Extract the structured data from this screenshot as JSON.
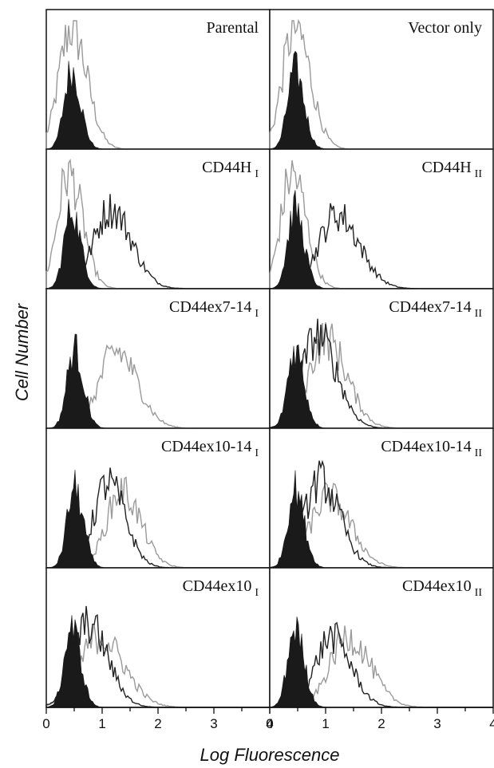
{
  "chart_data": {
    "type": "histogram-grid",
    "ylabel": "Cell Number",
    "xlabel": "Log Fluorescence",
    "xlim": [
      0,
      4
    ],
    "xticks": [
      0,
      1,
      2,
      3,
      4
    ],
    "series_style": {
      "control": {
        "fill": "#1a1a1a"
      },
      "antibody_dark": {
        "stroke": "#222222"
      },
      "antibody_gray": {
        "stroke": "#9a9a9a"
      }
    },
    "panels": [
      {
        "label": "Parental",
        "subscript": "",
        "control_peak": 0.45,
        "antibody": [
          {
            "tone": "gray",
            "peak": 0.45,
            "height": 0.95,
            "width": 0.22
          }
        ]
      },
      {
        "label": "Vector only",
        "subscript": "",
        "control_peak": 0.45,
        "antibody": [
          {
            "tone": "gray",
            "peak": 0.45,
            "height": 0.95,
            "width": 0.22
          }
        ]
      },
      {
        "label": "CD44H",
        "subscript": "I",
        "control_peak": 0.45,
        "antibody": [
          {
            "tone": "gray",
            "peak": 0.4,
            "height": 0.9,
            "width": 0.2
          },
          {
            "tone": "dark",
            "peak": 1.15,
            "height": 0.62,
            "width": 0.3
          }
        ]
      },
      {
        "label": "CD44H",
        "subscript": "II",
        "control_peak": 0.45,
        "antibody": [
          {
            "tone": "gray",
            "peak": 0.4,
            "height": 0.9,
            "width": 0.2
          },
          {
            "tone": "dark",
            "peak": 1.2,
            "height": 0.58,
            "width": 0.32
          }
        ]
      },
      {
        "label": "CD44ex7-14",
        "subscript": "I",
        "control_peak": 0.5,
        "antibody": [
          {
            "tone": "gray",
            "peak": 1.25,
            "height": 0.6,
            "width": 0.3
          }
        ]
      },
      {
        "label": "CD44ex7-14",
        "subscript": "II",
        "control_peak": 0.45,
        "antibody": [
          {
            "tone": "dark",
            "peak": 0.85,
            "height": 0.72,
            "width": 0.28
          },
          {
            "tone": "gray",
            "peak": 1.0,
            "height": 0.7,
            "width": 0.3
          }
        ]
      },
      {
        "label": "CD44ex10-14",
        "subscript": "I",
        "control_peak": 0.5,
        "antibody": [
          {
            "tone": "dark",
            "peak": 1.1,
            "height": 0.66,
            "width": 0.25
          },
          {
            "tone": "gray",
            "peak": 1.35,
            "height": 0.6,
            "width": 0.27
          }
        ]
      },
      {
        "label": "CD44ex10-14",
        "subscript": "II",
        "control_peak": 0.45,
        "antibody": [
          {
            "tone": "dark",
            "peak": 0.9,
            "height": 0.68,
            "width": 0.28
          },
          {
            "tone": "gray",
            "peak": 1.05,
            "height": 0.55,
            "width": 0.32
          }
        ]
      },
      {
        "label": "CD44ex10",
        "subscript": "I",
        "control_peak": 0.45,
        "antibody": [
          {
            "tone": "dark",
            "peak": 0.75,
            "height": 0.65,
            "width": 0.28
          },
          {
            "tone": "gray",
            "peak": 0.95,
            "height": 0.55,
            "width": 0.35
          }
        ]
      },
      {
        "label": "CD44ex10",
        "subscript": "II",
        "control_peak": 0.45,
        "antibody": [
          {
            "tone": "dark",
            "peak": 1.1,
            "height": 0.55,
            "width": 0.28
          },
          {
            "tone": "gray",
            "peak": 1.4,
            "height": 0.55,
            "width": 0.32
          }
        ]
      }
    ]
  }
}
